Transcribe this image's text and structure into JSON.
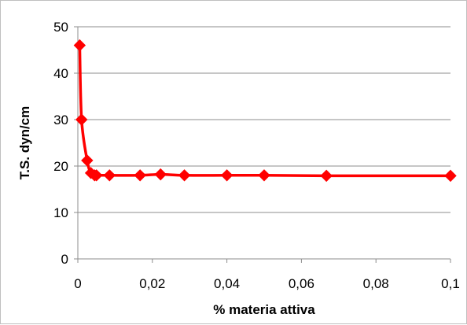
{
  "chart_data": {
    "type": "line",
    "title": "",
    "xlabel": "% materia attiva",
    "ylabel": "T.S. dyn/cm",
    "xlim": [
      0,
      0.1
    ],
    "ylim": [
      0,
      50
    ],
    "x_ticks": [
      0,
      0.02,
      0.04,
      0.06,
      0.08,
      0.1
    ],
    "x_tick_labels": [
      "0",
      "0,02",
      "0,04",
      "0,06",
      "0,08",
      "0,1"
    ],
    "y_ticks": [
      0,
      10,
      20,
      30,
      40,
      50
    ],
    "y_tick_labels": [
      "0",
      "10",
      "20",
      "30",
      "40",
      "50"
    ],
    "grid": "horizontal",
    "legend": "none",
    "series": [
      {
        "color": "#ff0000",
        "marker": "diamond",
        "smooth": true,
        "x": [
          0.0005,
          0.001,
          0.0025,
          0.0035,
          0.0045,
          0.005,
          0.0085,
          0.0167,
          0.0222,
          0.0286,
          0.04,
          0.05,
          0.0667,
          0.1
        ],
        "y": [
          46,
          30,
          21.2,
          18.5,
          18.0,
          18.0,
          18.0,
          18.0,
          18.2,
          18.0,
          18.0,
          18.0,
          17.9,
          17.9
        ]
      }
    ]
  }
}
